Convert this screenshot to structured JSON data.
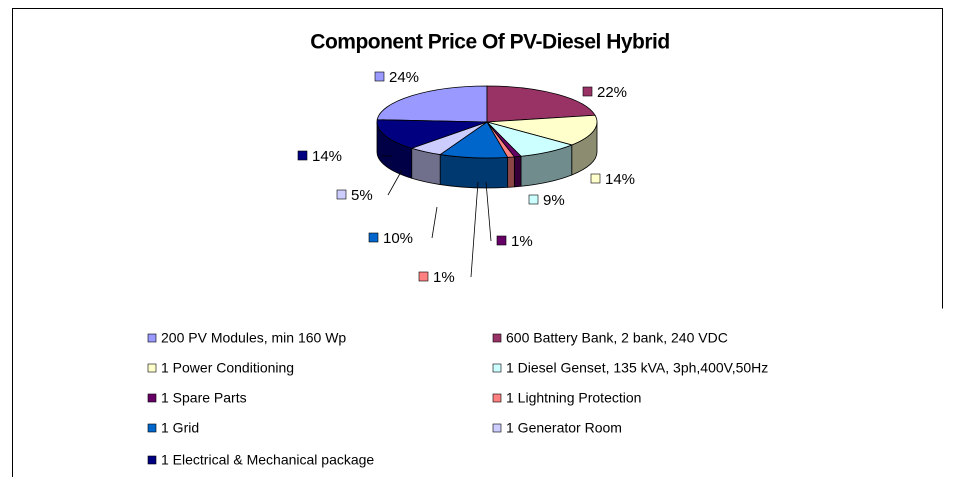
{
  "chart_data": {
    "type": "pie3d",
    "title": "Component Price Of PV-Diesel Hybrid",
    "categories": [
      "200 PV Modules, min 160 Wp",
      "600 Battery Bank, 2 bank, 240 VDC",
      "1 Power Conditioning",
      "1 Diesel Genset, 135 kVA, 3ph,400V,50Hz",
      "1 Spare Parts",
      "1 Lightning Protection",
      "1 Grid",
      "1 Generator Room",
      "1 Electrical & Mechanical package"
    ],
    "values": [
      24,
      22,
      14,
      9,
      1,
      1,
      10,
      5,
      14
    ],
    "value_labels": [
      "24%",
      "22%",
      "14%",
      "9%",
      "1%",
      "1%",
      "10%",
      "5%",
      "14%"
    ],
    "colors": [
      "#9999ff",
      "#993366",
      "#ffffcc",
      "#ccffff",
      "#660066",
      "#ff8080",
      "#0066cc",
      "#ccccff",
      "#000080"
    ],
    "legend": "bottom"
  }
}
